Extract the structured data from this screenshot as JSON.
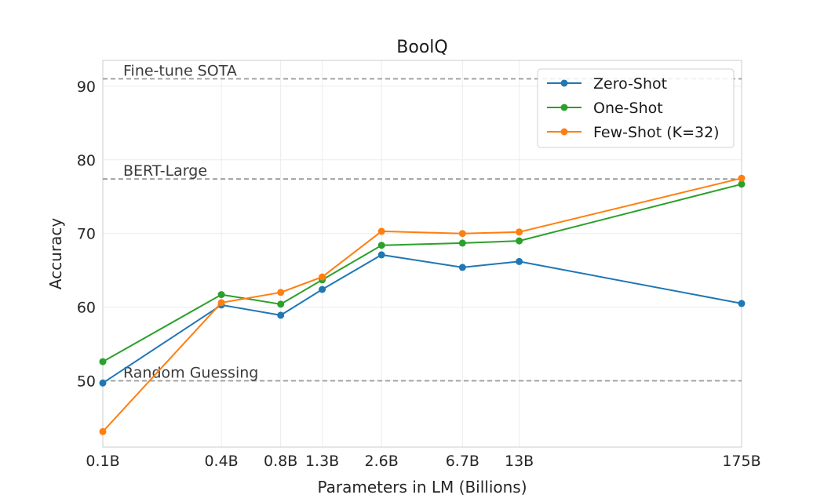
{
  "chart_data": {
    "type": "line",
    "title": "BoolQ",
    "xlabel": "Parameters in LM (Billions)",
    "ylabel": "Accuracy",
    "categories": [
      "0.1B",
      "0.4B",
      "0.8B",
      "1.3B",
      "2.6B",
      "6.7B",
      "13B",
      "175B"
    ],
    "x_params_billions": [
      0.1,
      0.4,
      0.8,
      1.3,
      2.6,
      6.7,
      13,
      175
    ],
    "x_scale": "log",
    "y_ticks": [
      50,
      60,
      70,
      80,
      90
    ],
    "ylim": [
      41,
      93.5
    ],
    "grid": true,
    "legend_position": "top-right",
    "series": [
      {
        "name": "Zero-Shot",
        "color": "#1f77b4",
        "values": [
          49.7,
          60.3,
          58.9,
          62.4,
          67.1,
          65.4,
          66.2,
          60.5
        ]
      },
      {
        "name": "One-Shot",
        "color": "#2ca02c",
        "values": [
          52.6,
          61.7,
          60.4,
          63.7,
          68.4,
          68.7,
          69.0,
          76.7
        ]
      },
      {
        "name": "Few-Shot (K=32)",
        "color": "#ff7f0e",
        "values": [
          43.1,
          60.6,
          62.0,
          64.1,
          70.3,
          70.0,
          70.2,
          77.5
        ]
      }
    ],
    "reference_lines": [
      {
        "label": "Fine-tune SOTA",
        "value": 91.0,
        "color": "#999999"
      },
      {
        "label": "BERT-Large",
        "value": 77.4,
        "color": "#999999"
      },
      {
        "label": "Random Guessing",
        "value": 50.0,
        "color": "#999999"
      }
    ]
  }
}
